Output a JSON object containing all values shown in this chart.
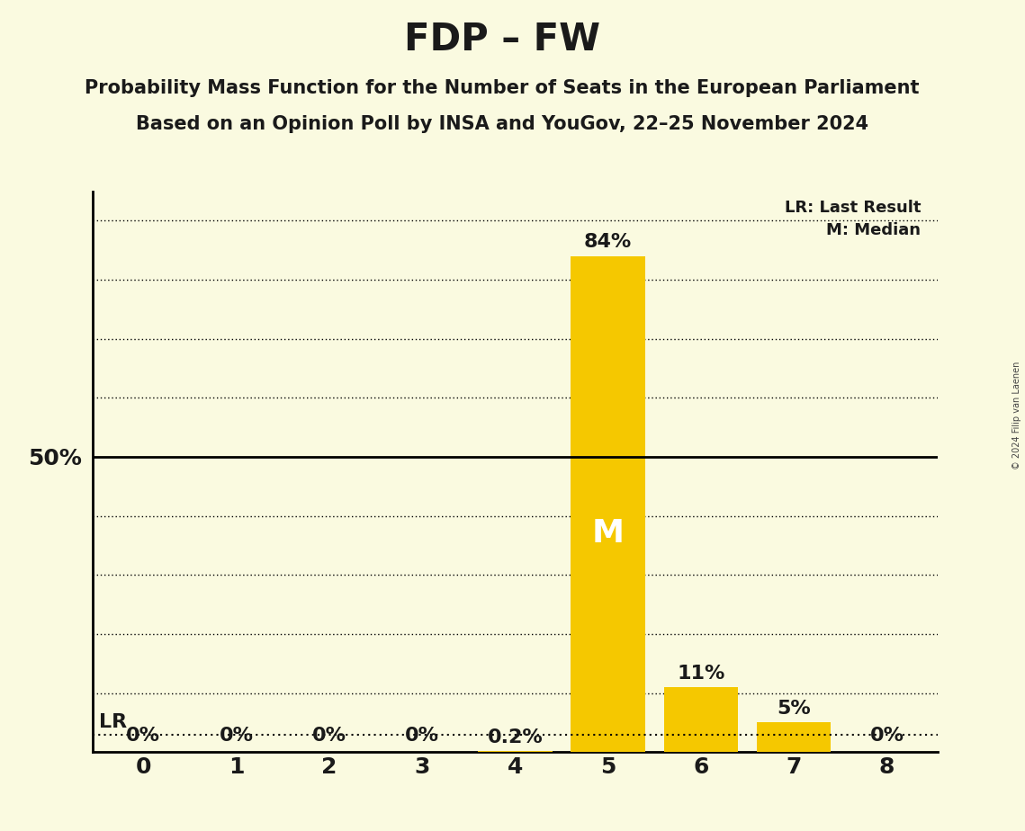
{
  "title": "FDP – FW",
  "subtitle1": "Probability Mass Function for the Number of Seats in the European Parliament",
  "subtitle2": "Based on an Opinion Poll by INSA and YouGov, 22–25 November 2024",
  "copyright": "© 2024 Filip van Laenen",
  "categories": [
    0,
    1,
    2,
    3,
    4,
    5,
    6,
    7,
    8
  ],
  "values": [
    0.0,
    0.0,
    0.0,
    0.0,
    0.2,
    84.0,
    11.0,
    5.0,
    0.0
  ],
  "bar_color": "#F5C800",
  "background_color": "#FAFAE0",
  "text_color": "#1a1a1a",
  "value_labels": [
    "0%",
    "0%",
    "0%",
    "0%",
    "0.2%",
    "84%",
    "11%",
    "5%",
    "0%"
  ],
  "median_seat": 5,
  "median_label": "M",
  "lr_value": 3.0,
  "lr_label": "LR",
  "fifty_pct_line": 50.0,
  "legend_lr": "LR: Last Result",
  "legend_m": "M: Median",
  "ylim": [
    0,
    95
  ],
  "grid_lines": [
    10,
    20,
    30,
    40,
    60,
    70,
    80,
    90
  ],
  "title_fontsize": 30,
  "subtitle_fontsize": 15,
  "label_fontsize": 16,
  "tick_fontsize": 18,
  "bar_width": 0.8
}
